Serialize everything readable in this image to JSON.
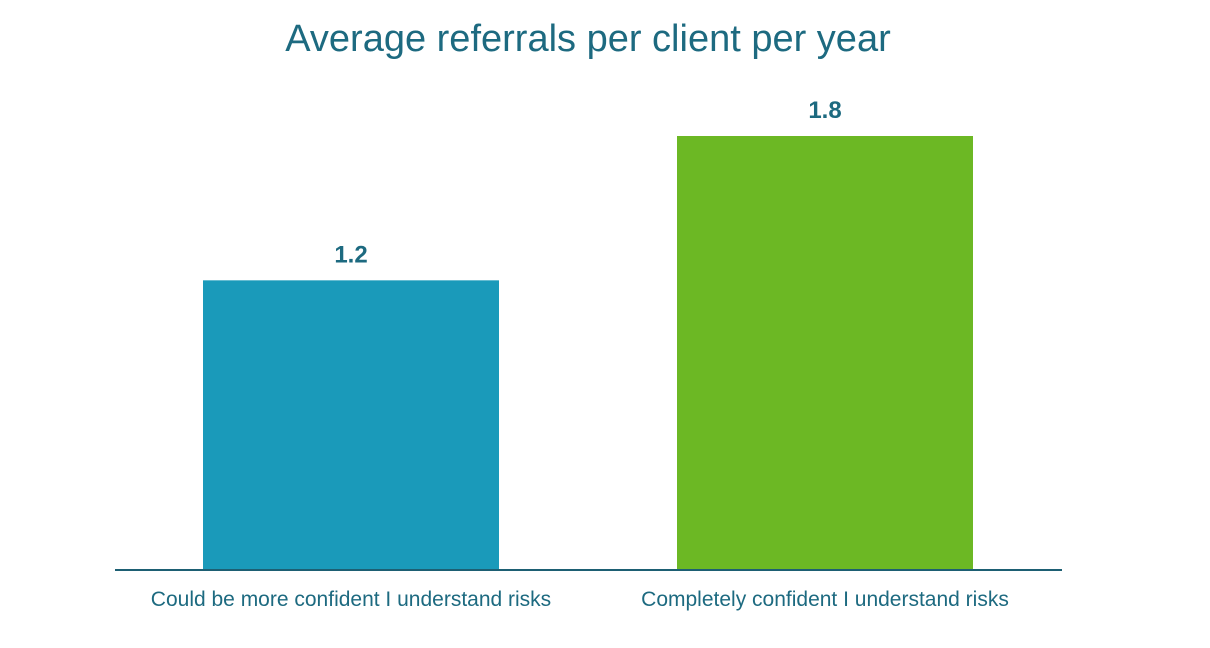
{
  "chart_data": {
    "type": "bar",
    "title": "Average referrals per client per year",
    "categories": [
      "Could be more confident I understand risks",
      "Completely confident I understand risks"
    ],
    "values": [
      1.2,
      1.8
    ],
    "data_labels": [
      "1.2",
      "1.8"
    ],
    "colors": [
      "#1a9aba",
      "#6cb824"
    ],
    "text_color": "#1d6a80",
    "xlabel": "",
    "ylabel": "",
    "ylim": [
      0,
      1.8
    ],
    "grid": false,
    "legend": "none"
  }
}
